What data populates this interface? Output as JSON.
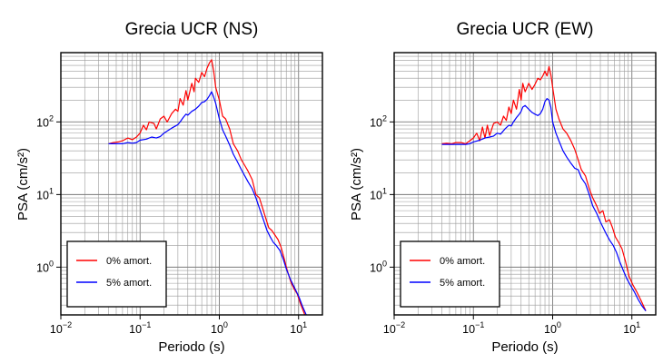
{
  "chart_data": [
    {
      "type": "line",
      "title": "Grecia UCR (NS)",
      "xlabel": "Periodo (s)",
      "ylabel": "PSA (cm/s²)",
      "xscale": "log",
      "yscale": "log",
      "xlim": [
        0.01,
        20
      ],
      "ylim": [
        0.22,
        900
      ],
      "grid": true,
      "legend_position": "bottom-left",
      "xticks": [
        {
          "base": "10",
          "exp": "−2",
          "value": 0.01
        },
        {
          "base": "10",
          "exp": "−1",
          "value": 0.1
        },
        {
          "base": "10",
          "exp": "0",
          "value": 1
        },
        {
          "base": "10",
          "exp": "1",
          "value": 10
        }
      ],
      "yticks": [
        {
          "base": "10",
          "exp": "0",
          "value": 1
        },
        {
          "base": "10",
          "exp": "1",
          "value": 10
        },
        {
          "base": "10",
          "exp": "2",
          "value": 100
        }
      ],
      "series": [
        {
          "name": "0% amort.",
          "color": "#ff0000",
          "points": [
            [
              0.04,
              50
            ],
            [
              0.046,
              52
            ],
            [
              0.053,
              53
            ],
            [
              0.06,
              55
            ],
            [
              0.07,
              60
            ],
            [
              0.08,
              57
            ],
            [
              0.09,
              62
            ],
            [
              0.1,
              70
            ],
            [
              0.11,
              90
            ],
            [
              0.12,
              78
            ],
            [
              0.13,
              100
            ],
            [
              0.15,
              95
            ],
            [
              0.16,
              80
            ],
            [
              0.18,
              110
            ],
            [
              0.2,
              120
            ],
            [
              0.22,
              100
            ],
            [
              0.25,
              130
            ],
            [
              0.28,
              150
            ],
            [
              0.3,
              140
            ],
            [
              0.32,
              210
            ],
            [
              0.35,
              170
            ],
            [
              0.38,
              270
            ],
            [
              0.4,
              200
            ],
            [
              0.45,
              340
            ],
            [
              0.48,
              260
            ],
            [
              0.5,
              400
            ],
            [
              0.55,
              350
            ],
            [
              0.6,
              480
            ],
            [
              0.65,
              420
            ],
            [
              0.7,
              550
            ],
            [
              0.75,
              650
            ],
            [
              0.8,
              720
            ],
            [
              0.85,
              500
            ],
            [
              0.9,
              300
            ],
            [
              1.0,
              200
            ],
            [
              1.1,
              120
            ],
            [
              1.2,
              110
            ],
            [
              1.35,
              80
            ],
            [
              1.5,
              50
            ],
            [
              1.7,
              40
            ],
            [
              1.9,
              30
            ],
            [
              2.1,
              25
            ],
            [
              2.3,
              21
            ],
            [
              2.6,
              16
            ],
            [
              2.9,
              10
            ],
            [
              3.2,
              9
            ],
            [
              3.6,
              6
            ],
            [
              3.9,
              4.5
            ],
            [
              4.2,
              3.5
            ],
            [
              4.6,
              3.2
            ],
            [
              5.0,
              2.8
            ],
            [
              5.5,
              2.4
            ],
            [
              6.0,
              1.9
            ],
            [
              6.6,
              1.3
            ],
            [
              7.2,
              0.9
            ],
            [
              8.0,
              0.62
            ],
            [
              8.8,
              0.5
            ],
            [
              9.6,
              0.43
            ],
            [
              10.5,
              0.32
            ],
            [
              12.0,
              0.22
            ]
          ]
        },
        {
          "name": "5% amort.",
          "color": "#0000ff",
          "points": [
            [
              0.04,
              50
            ],
            [
              0.05,
              50
            ],
            [
              0.06,
              50
            ],
            [
              0.07,
              52
            ],
            [
              0.08,
              51
            ],
            [
              0.09,
              52
            ],
            [
              0.1,
              56
            ],
            [
              0.12,
              58
            ],
            [
              0.14,
              62
            ],
            [
              0.16,
              60
            ],
            [
              0.18,
              63
            ],
            [
              0.2,
              70
            ],
            [
              0.22,
              75
            ],
            [
              0.25,
              82
            ],
            [
              0.28,
              88
            ],
            [
              0.3,
              92
            ],
            [
              0.32,
              100
            ],
            [
              0.35,
              115
            ],
            [
              0.38,
              128
            ],
            [
              0.4,
              124
            ],
            [
              0.45,
              140
            ],
            [
              0.5,
              150
            ],
            [
              0.55,
              165
            ],
            [
              0.6,
              185
            ],
            [
              0.65,
              190
            ],
            [
              0.7,
              205
            ],
            [
              0.75,
              230
            ],
            [
              0.8,
              260
            ],
            [
              0.85,
              220
            ],
            [
              0.9,
              180
            ],
            [
              1.0,
              110
            ],
            [
              1.1,
              78
            ],
            [
              1.2,
              64
            ],
            [
              1.35,
              48
            ],
            [
              1.5,
              36
            ],
            [
              1.7,
              28
            ],
            [
              1.9,
              22
            ],
            [
              2.1,
              18
            ],
            [
              2.3,
              15
            ],
            [
              2.6,
              12
            ],
            [
              2.9,
              9
            ],
            [
              3.2,
              6.5
            ],
            [
              3.6,
              4.5
            ],
            [
              4.0,
              3.2
            ],
            [
              4.4,
              2.6
            ],
            [
              4.8,
              2.2
            ],
            [
              5.2,
              2.0
            ],
            [
              5.8,
              1.7
            ],
            [
              6.4,
              1.3
            ],
            [
              7.0,
              0.95
            ],
            [
              7.8,
              0.7
            ],
            [
              8.6,
              0.56
            ],
            [
              9.4,
              0.46
            ],
            [
              10.2,
              0.38
            ],
            [
              11.2,
              0.29
            ],
            [
              12.5,
              0.22
            ]
          ]
        }
      ]
    },
    {
      "type": "line",
      "title": "Grecia UCR (EW)",
      "xlabel": "Periodo (s)",
      "ylabel": "PSA (cm/s²)",
      "xscale": "log",
      "yscale": "log",
      "xlim": [
        0.01,
        20
      ],
      "ylim": [
        0.22,
        900
      ],
      "grid": true,
      "legend_position": "bottom-left",
      "xticks": [
        {
          "base": "10",
          "exp": "−2",
          "value": 0.01
        },
        {
          "base": "10",
          "exp": "−1",
          "value": 0.1
        },
        {
          "base": "10",
          "exp": "0",
          "value": 1
        },
        {
          "base": "10",
          "exp": "1",
          "value": 10
        }
      ],
      "yticks": [
        {
          "base": "10",
          "exp": "0",
          "value": 1
        },
        {
          "base": "10",
          "exp": "1",
          "value": 10
        },
        {
          "base": "10",
          "exp": "2",
          "value": 100
        }
      ],
      "series": [
        {
          "name": "0% amort.",
          "color": "#ff0000",
          "points": [
            [
              0.04,
              50
            ],
            [
              0.046,
              51
            ],
            [
              0.053,
              50
            ],
            [
              0.06,
              52
            ],
            [
              0.07,
              52
            ],
            [
              0.08,
              50
            ],
            [
              0.09,
              55
            ],
            [
              0.1,
              60
            ],
            [
              0.11,
              70
            ],
            [
              0.12,
              55
            ],
            [
              0.13,
              85
            ],
            [
              0.14,
              60
            ],
            [
              0.15,
              90
            ],
            [
              0.16,
              65
            ],
            [
              0.18,
              95
            ],
            [
              0.2,
              100
            ],
            [
              0.22,
              90
            ],
            [
              0.24,
              120
            ],
            [
              0.26,
              105
            ],
            [
              0.28,
              160
            ],
            [
              0.3,
              130
            ],
            [
              0.32,
              200
            ],
            [
              0.35,
              150
            ],
            [
              0.38,
              280
            ],
            [
              0.4,
              200
            ],
            [
              0.42,
              340
            ],
            [
              0.45,
              260
            ],
            [
              0.5,
              340
            ],
            [
              0.55,
              280
            ],
            [
              0.6,
              330
            ],
            [
              0.65,
              400
            ],
            [
              0.7,
              380
            ],
            [
              0.75,
              430
            ],
            [
              0.8,
              500
            ],
            [
              0.85,
              430
            ],
            [
              0.9,
              580
            ],
            [
              0.95,
              450
            ],
            [
              1.0,
              300
            ],
            [
              1.1,
              150
            ],
            [
              1.2,
              110
            ],
            [
              1.35,
              80
            ],
            [
              1.5,
              70
            ],
            [
              1.7,
              55
            ],
            [
              1.9,
              42
            ],
            [
              2.1,
              30
            ],
            [
              2.3,
              22
            ],
            [
              2.6,
              18
            ],
            [
              2.9,
              12
            ],
            [
              3.2,
              9
            ],
            [
              3.6,
              7
            ],
            [
              3.9,
              5.5
            ],
            [
              4.3,
              6
            ],
            [
              4.7,
              4.2
            ],
            [
              5.2,
              4.5
            ],
            [
              5.7,
              3.5
            ],
            [
              6.2,
              2.6
            ],
            [
              6.8,
              2.2
            ],
            [
              7.5,
              1.8
            ],
            [
              8.3,
              1.2
            ],
            [
              9.2,
              0.75
            ],
            [
              10.2,
              0.58
            ],
            [
              11.5,
              0.46
            ],
            [
              13,
              0.35
            ],
            [
              15,
              0.25
            ]
          ]
        },
        {
          "name": "5% amort.",
          "color": "#0000ff",
          "points": [
            [
              0.04,
              49
            ],
            [
              0.05,
              49
            ],
            [
              0.06,
              49
            ],
            [
              0.07,
              49
            ],
            [
              0.08,
              49
            ],
            [
              0.09,
              50
            ],
            [
              0.1,
              53
            ],
            [
              0.12,
              56
            ],
            [
              0.14,
              60
            ],
            [
              0.16,
              62
            ],
            [
              0.18,
              64
            ],
            [
              0.2,
              70
            ],
            [
              0.22,
              68
            ],
            [
              0.25,
              80
            ],
            [
              0.28,
              90
            ],
            [
              0.3,
              88
            ],
            [
              0.32,
              100
            ],
            [
              0.35,
              115
            ],
            [
              0.38,
              128
            ],
            [
              0.4,
              140
            ],
            [
              0.42,
              160
            ],
            [
              0.45,
              168
            ],
            [
              0.5,
              150
            ],
            [
              0.55,
              135
            ],
            [
              0.6,
              128
            ],
            [
              0.65,
              122
            ],
            [
              0.7,
              130
            ],
            [
              0.75,
              150
            ],
            [
              0.8,
              190
            ],
            [
              0.85,
              210
            ],
            [
              0.9,
              200
            ],
            [
              0.95,
              160
            ],
            [
              1.0,
              100
            ],
            [
              1.1,
              70
            ],
            [
              1.2,
              55
            ],
            [
              1.35,
              40
            ],
            [
              1.5,
              33
            ],
            [
              1.7,
              27
            ],
            [
              1.9,
              23
            ],
            [
              2.1,
              22
            ],
            [
              2.3,
              17
            ],
            [
              2.6,
              14
            ],
            [
              2.9,
              10
            ],
            [
              3.2,
              7
            ],
            [
              3.6,
              5.5
            ],
            [
              4.0,
              4.2
            ],
            [
              4.4,
              3.4
            ],
            [
              4.8,
              2.8
            ],
            [
              5.3,
              2.3
            ],
            [
              5.8,
              2.0
            ],
            [
              6.4,
              1.6
            ],
            [
              7.0,
              1.2
            ],
            [
              7.8,
              0.9
            ],
            [
              8.6,
              0.7
            ],
            [
              9.6,
              0.56
            ],
            [
              10.8,
              0.45
            ],
            [
              12,
              0.36
            ],
            [
              13.5,
              0.29
            ],
            [
              15,
              0.25
            ]
          ]
        }
      ]
    }
  ]
}
